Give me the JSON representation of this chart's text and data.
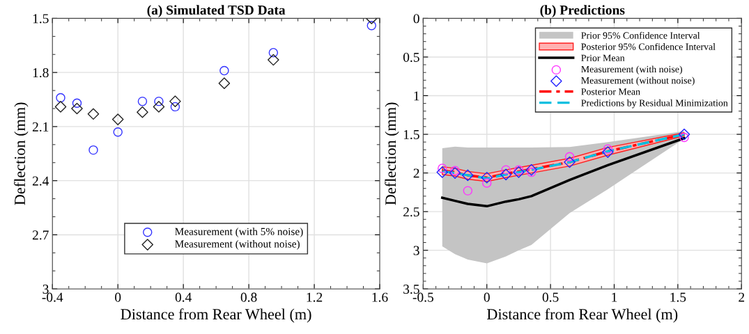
{
  "chart_data": [
    {
      "type": "scatter",
      "title": "(a) Simulated TSD Data",
      "xlabel": "Distance from Rear Wheel (m)",
      "ylabel": "Deflection (mm)",
      "x": [
        -0.35,
        -0.25,
        -0.15,
        0,
        0.15,
        0.25,
        0.35,
        0.65,
        0.95,
        1.55
      ],
      "series": [
        {
          "name": "Measurement (with 5% noise)",
          "color": "#3333ff",
          "marker": "circle",
          "values": [
            1.94,
            1.97,
            2.23,
            2.13,
            1.96,
            1.96,
            1.99,
            1.79,
            1.69,
            1.54
          ]
        },
        {
          "name": "Measurement (without noise)",
          "color": "#222222",
          "marker": "diamond",
          "values": [
            1.99,
            2.0,
            2.03,
            2.06,
            2.02,
            1.99,
            1.96,
            1.86,
            1.73,
            1.5
          ]
        }
      ],
      "xlim": [
        -0.4,
        1.6
      ],
      "xticks": [
        -0.4,
        0,
        0.4,
        0.8,
        1.2,
        1.6
      ],
      "ylim": [
        3,
        1.5
      ],
      "yticks": [
        1.5,
        1.8,
        2.1,
        2.4,
        2.7,
        3
      ],
      "grid": true,
      "legend": "bottom"
    },
    {
      "type": "line",
      "title": "(b) Predictions",
      "xlabel": "Distance from Rear Wheel (m)",
      "ylabel": "Deflection (mm)",
      "x": [
        -0.35,
        -0.25,
        -0.15,
        0,
        0.15,
        0.25,
        0.35,
        0.65,
        0.95,
        1.55
      ],
      "series": [
        {
          "name": "Prior 95% Confidence Interval",
          "type": "area",
          "color": "#c4c4c4",
          "values": [
            null,
            null,
            null,
            null,
            null,
            null,
            null,
            null,
            null,
            null
          ],
          "lower": [
            1.68,
            1.66,
            1.67,
            1.67,
            1.67,
            1.67,
            1.67,
            1.665,
            1.6,
            1.46
          ],
          "upper": [
            2.95,
            3.05,
            3.12,
            3.17,
            3.08,
            3.0,
            2.93,
            2.52,
            2.21,
            1.555
          ]
        },
        {
          "name": "Posterior 95% Confidence Interval",
          "type": "area",
          "color": "#ff2020",
          "line_style": "solid",
          "values": [
            null,
            null,
            null,
            null,
            null,
            null,
            null,
            null,
            null,
            null
          ],
          "lower": [
            1.92,
            1.94,
            1.98,
            2.01,
            1.96,
            1.93,
            1.9,
            1.81,
            1.67,
            1.48
          ],
          "upper": [
            2.02,
            2.04,
            2.08,
            2.11,
            2.06,
            2.03,
            2.0,
            1.91,
            1.77,
            1.52
          ]
        },
        {
          "name": "Prior Mean",
          "type": "line",
          "color": "#000000",
          "line_style": "solid",
          "values": [
            2.32,
            2.36,
            2.4,
            2.43,
            2.37,
            2.34,
            2.3,
            2.09,
            1.9,
            1.55
          ]
        },
        {
          "name": "Measurement (with noise)",
          "type": "scatter",
          "color": "#ff33ff",
          "marker": "circle",
          "values": [
            1.94,
            1.97,
            2.23,
            2.13,
            1.96,
            1.96,
            1.99,
            1.79,
            1.69,
            1.54
          ]
        },
        {
          "name": "Measurement (without noise)",
          "type": "scatter",
          "color": "#2222ff",
          "marker": "diamond",
          "values": [
            1.99,
            2.0,
            2.03,
            2.06,
            2.02,
            1.99,
            1.96,
            1.86,
            1.73,
            1.5
          ]
        },
        {
          "name": "Posterior Mean",
          "type": "line",
          "color": "#ff0000",
          "line_style": "dashdot",
          "values": [
            1.97,
            1.99,
            2.03,
            2.06,
            2.01,
            1.98,
            1.95,
            1.86,
            1.72,
            1.5
          ]
        },
        {
          "name": "Predictions by Residual Minimization",
          "type": "line",
          "color": "#00bfe0",
          "line_style": "dashed",
          "values": [
            1.98,
            2.0,
            2.03,
            2.07,
            2.02,
            1.99,
            1.96,
            1.86,
            1.72,
            1.5
          ]
        }
      ],
      "xlim": [
        -0.5,
        2
      ],
      "xticks": [
        -0.5,
        0,
        0.5,
        1,
        1.5,
        2
      ],
      "ylim": [
        3.5,
        0
      ],
      "yticks": [
        0,
        0.5,
        1,
        1.5,
        2,
        2.5,
        3,
        3.5
      ],
      "grid": true,
      "legend": "top right"
    }
  ]
}
